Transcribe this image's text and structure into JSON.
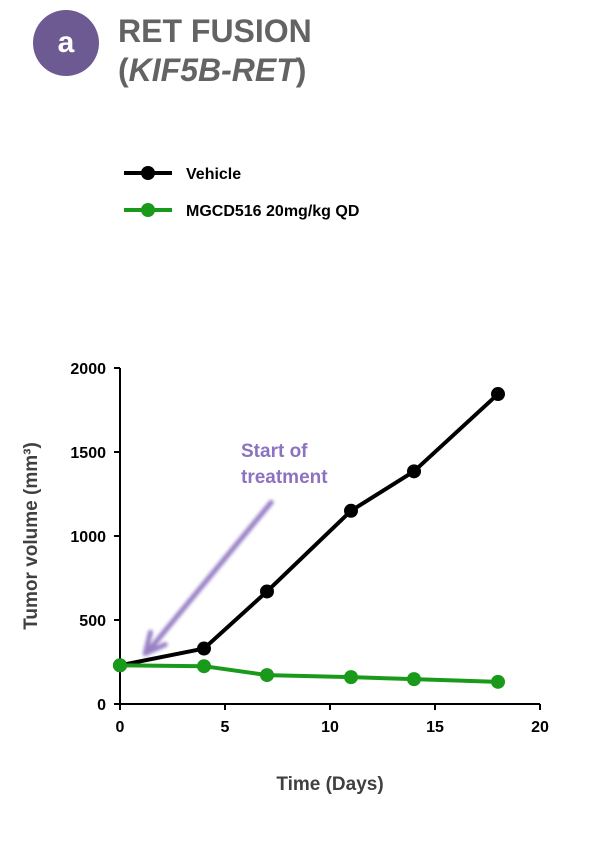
{
  "panel": {
    "badge": "a",
    "title_line1": "RET FUSION",
    "title_line2_open": "(",
    "title_line2_gene": "KIF5B-RET",
    "title_line2_close": ")"
  },
  "colors": {
    "badge": "#6e5a93",
    "title": "#636363",
    "vehicle": "#000000",
    "treated": "#1a9a1a",
    "annotation": "#8d72bf",
    "axis_title": "#404040"
  },
  "chart_data": {
    "type": "line",
    "xlabel": "Time (Days)",
    "ylabel": "Tumor volume (mm³)",
    "xlim": [
      0,
      20
    ],
    "ylim": [
      0,
      2000
    ],
    "xticks": [
      0,
      5,
      10,
      15,
      20
    ],
    "yticks": [
      0,
      500,
      1000,
      1500,
      2000
    ],
    "grid": false,
    "legend_position": "top-left",
    "series": [
      {
        "name": "Vehicle",
        "color": "#000000",
        "points": [
          [
            0,
            230
          ],
          [
            4,
            330
          ],
          [
            7,
            670
          ],
          [
            11,
            1150
          ],
          [
            14,
            1385
          ],
          [
            18,
            1845
          ]
        ]
      },
      {
        "name": "MGCD516 20mg/kg QD",
        "color": "#1a9a1a",
        "points": [
          [
            0,
            230
          ],
          [
            4,
            225
          ],
          [
            7,
            172
          ],
          [
            11,
            160
          ],
          [
            14,
            148
          ],
          [
            18,
            132
          ]
        ]
      }
    ],
    "annotation": {
      "text_line1": "Start of",
      "text_line2": "treatment",
      "arrow_from": [
        7.2,
        1200
      ],
      "arrow_to": [
        1.2,
        300
      ]
    }
  }
}
